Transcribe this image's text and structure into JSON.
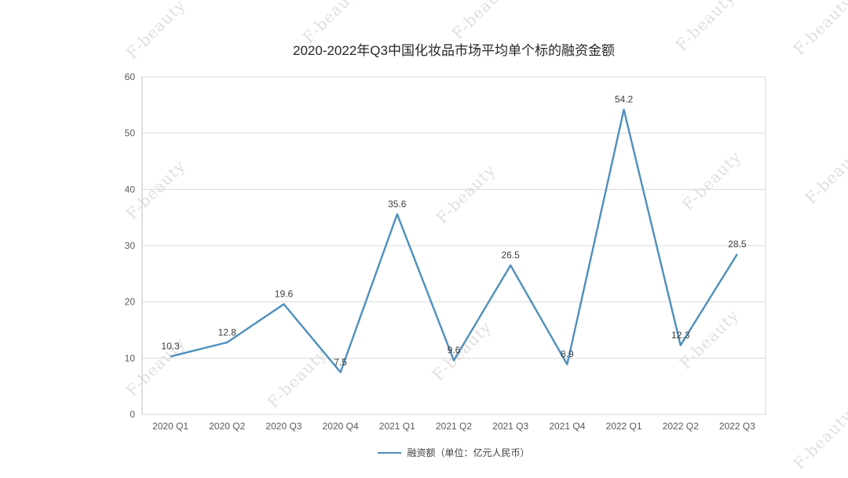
{
  "watermark": {
    "text": "F-beauty"
  },
  "chart_data": {
    "type": "line",
    "title": "2020-2022年Q3中国化妆品市场平均单个标的融资金额",
    "categories": [
      "2020 Q1",
      "2020 Q2",
      "2020 Q3",
      "2020 Q4",
      "2021 Q1",
      "2021 Q2",
      "2021 Q3",
      "2021 Q4",
      "2022 Q1",
      "2022 Q2",
      "2022 Q3"
    ],
    "series": [
      {
        "name": "融资额（单位：亿元人民币）",
        "values": [
          10.3,
          12.8,
          19.6,
          7.5,
          35.6,
          9.6,
          26.5,
          8.9,
          54.2,
          12.3,
          28.5
        ]
      }
    ],
    "legend": "融资额（单位：亿元人民币）",
    "ylim": [
      0,
      60
    ],
    "yticks": [
      0,
      10,
      20,
      30,
      40,
      50,
      60
    ],
    "grid": true,
    "legend_position": "bottom",
    "line_color": "#4e8fbc",
    "grid_color": "#d9d9d9",
    "axis_color": "#bfbfbf",
    "tick_label_color": "#595959",
    "data_label_color": "#3d3d3d"
  }
}
